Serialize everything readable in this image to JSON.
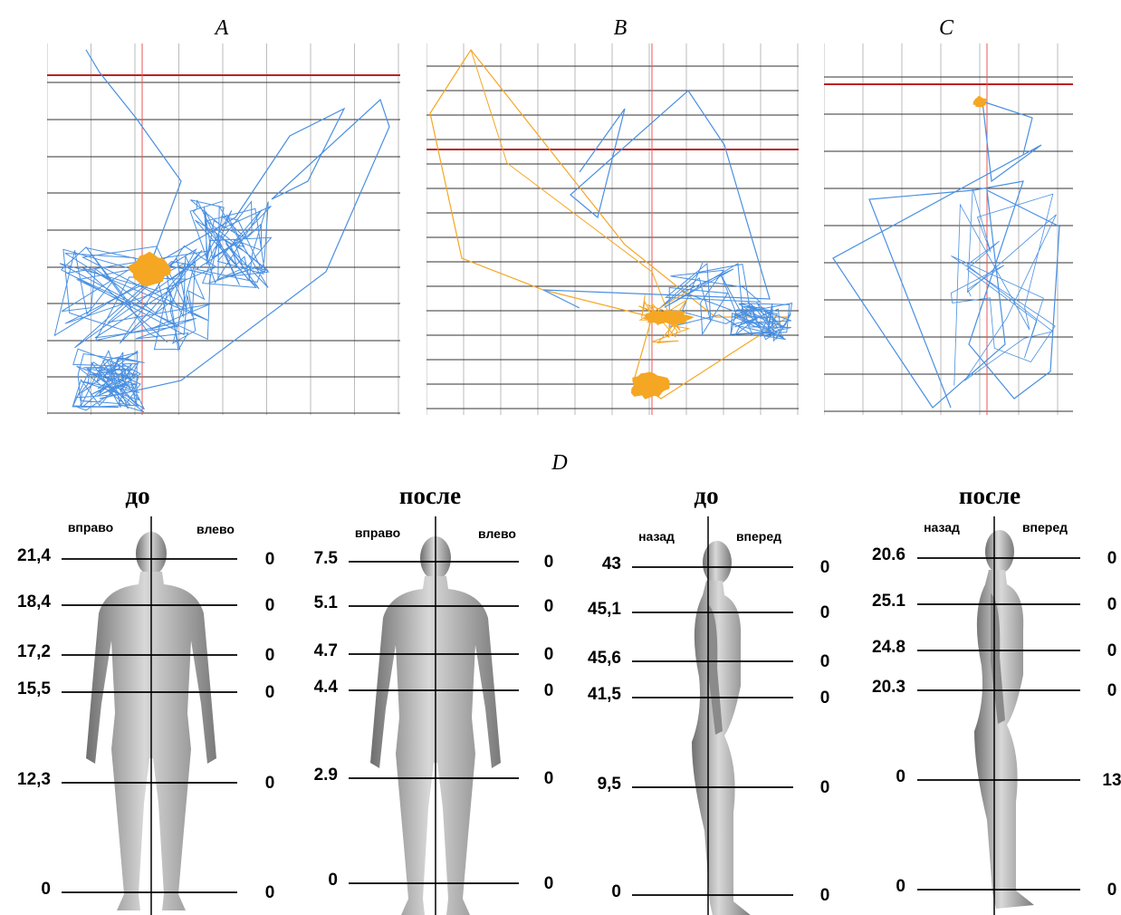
{
  "panels": [
    {
      "label": "A"
    },
    {
      "label": "B"
    },
    {
      "label": "C"
    }
  ],
  "panel_d": {
    "label": "D",
    "subpanels": [
      {
        "title": "до",
        "left_label": "вправо",
        "right_label": "влево",
        "left_values": [
          "21,4",
          "18,4",
          "17,2",
          "15,5",
          "12,3",
          "0"
        ],
        "right_values": [
          "0",
          "0",
          "0",
          "0",
          "0",
          "0"
        ]
      },
      {
        "title": "после",
        "left_label": "вправо",
        "right_label": "влево",
        "left_values": [
          "7.5",
          "5.1",
          "4.7",
          "4.4",
          "2.9",
          "0"
        ],
        "right_values": [
          "0",
          "0",
          "0",
          "0",
          "0",
          "0"
        ]
      },
      {
        "title": "до",
        "left_label": "назад",
        "right_label": "вперед",
        "left_values": [
          "43",
          "45,1",
          "45,6",
          "41,5",
          "9,5",
          "0"
        ],
        "right_values": [
          "0",
          "0",
          "0",
          "0",
          "0",
          "0"
        ]
      },
      {
        "title": "после",
        "left_label": "назад",
        "right_label": "вперед",
        "left_values": [
          "20.6",
          "25.1",
          "24.8",
          "20.3",
          "0",
          "0"
        ],
        "right_values": [
          "0",
          "0",
          "0",
          "0",
          "13",
          "0"
        ]
      }
    ]
  }
}
